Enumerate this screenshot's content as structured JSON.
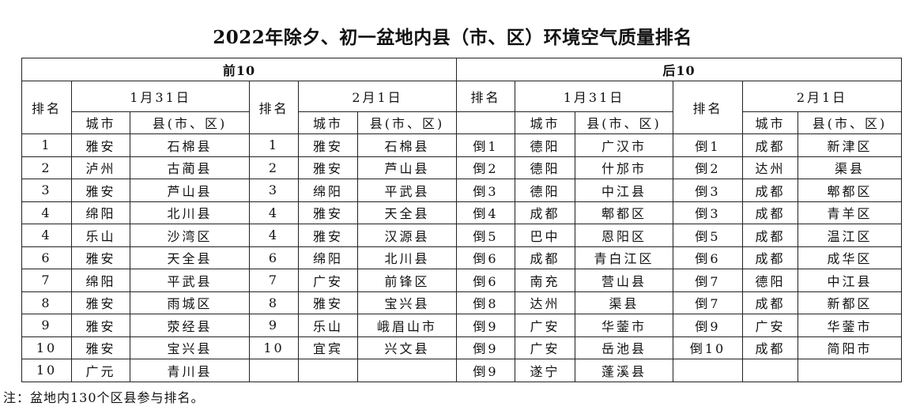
{
  "title": "2022年除夕、初一盆地内县（市、区）环境空气质量排名",
  "headers": {
    "top10": "前10",
    "bottom10": "后10",
    "rank": "排名",
    "date1": "1月31日",
    "date2": "2月1日",
    "city": "城市",
    "county": "县(市、区)"
  },
  "top": {
    "day1": [
      [
        "1",
        "雅安",
        "石棉县"
      ],
      [
        "2",
        "泸州",
        "古蔺县"
      ],
      [
        "3",
        "雅安",
        "芦山县"
      ],
      [
        "4",
        "绵阳",
        "北川县"
      ],
      [
        "4",
        "乐山",
        "沙湾区"
      ],
      [
        "6",
        "雅安",
        "天全县"
      ],
      [
        "7",
        "绵阳",
        "平武县"
      ],
      [
        "8",
        "雅安",
        "雨城区"
      ],
      [
        "9",
        "雅安",
        "荥经县"
      ],
      [
        "10",
        "雅安",
        "宝兴县"
      ],
      [
        "10",
        "广元",
        "青川县"
      ]
    ],
    "day2": [
      [
        "1",
        "雅安",
        "石棉县"
      ],
      [
        "2",
        "雅安",
        "芦山县"
      ],
      [
        "3",
        "绵阳",
        "平武县"
      ],
      [
        "4",
        "雅安",
        "天全县"
      ],
      [
        "4",
        "雅安",
        "汉源县"
      ],
      [
        "6",
        "绵阳",
        "北川县"
      ],
      [
        "7",
        "广安",
        "前锋区"
      ],
      [
        "8",
        "雅安",
        "宝兴县"
      ],
      [
        "9",
        "乐山",
        "峨眉山市"
      ],
      [
        "10",
        "宜宾",
        "兴文县"
      ],
      [
        "",
        "",
        ""
      ]
    ]
  },
  "bottom": {
    "day1": [
      [
        "倒1",
        "德阳",
        "广汉市"
      ],
      [
        "倒2",
        "德阳",
        "什邡市"
      ],
      [
        "倒3",
        "德阳",
        "中江县"
      ],
      [
        "倒4",
        "成都",
        "郫都区"
      ],
      [
        "倒5",
        "巴中",
        "恩阳区"
      ],
      [
        "倒6",
        "成都",
        "青白江区"
      ],
      [
        "倒6",
        "南充",
        "营山县"
      ],
      [
        "倒8",
        "达州",
        "渠县"
      ],
      [
        "倒9",
        "广安",
        "华蓥市"
      ],
      [
        "倒9",
        "广安",
        "岳池县"
      ],
      [
        "倒9",
        "遂宁",
        "蓬溪县"
      ]
    ],
    "day2": [
      [
        "倒1",
        "成都",
        "新津区"
      ],
      [
        "倒2",
        "达州",
        "渠县"
      ],
      [
        "倒3",
        "成都",
        "郫都区"
      ],
      [
        "倒3",
        "成都",
        "青羊区"
      ],
      [
        "倒5",
        "成都",
        "温江区"
      ],
      [
        "倒6",
        "成都",
        "成华区"
      ],
      [
        "倒7",
        "德阳",
        "中江县"
      ],
      [
        "倒7",
        "成都",
        "新都区"
      ],
      [
        "倒9",
        "广安",
        "华蓥市"
      ],
      [
        "倒10",
        "成都",
        "简阳市"
      ],
      [
        "",
        "",
        ""
      ]
    ]
  },
  "note": "注：盆地内130个区县参与排名。"
}
